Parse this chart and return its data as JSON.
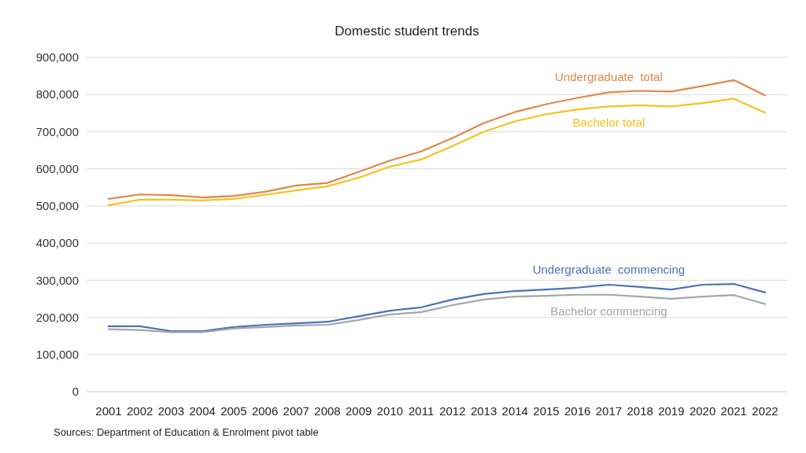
{
  "chart_data": {
    "type": "line",
    "title": "Domestic student trends",
    "categories": [
      "2001",
      "2002",
      "2003",
      "2004",
      "2005",
      "2006",
      "2007",
      "2008",
      "2009",
      "2010",
      "2011",
      "2012",
      "2013",
      "2014",
      "2015",
      "2016",
      "2017",
      "2018",
      "2019",
      "2020",
      "2021",
      "2022"
    ],
    "series": [
      {
        "name": "Undergraduate  total",
        "color": "#e0884a",
        "values": [
          519000,
          531000,
          529000,
          523000,
          527000,
          538000,
          555000,
          562000,
          592000,
          622000,
          647000,
          683000,
          723000,
          753000,
          774000,
          791000,
          806000,
          810000,
          808000,
          823000,
          839000,
          798000
        ]
      },
      {
        "name": "Bachelor total",
        "color": "#f6c21c",
        "values": [
          502000,
          517000,
          517000,
          515000,
          519000,
          530000,
          542000,
          553000,
          576000,
          606000,
          625000,
          661000,
          700000,
          728000,
          747000,
          760000,
          768000,
          771000,
          768000,
          777000,
          789000,
          751000
        ]
      },
      {
        "name": "Undergraduate  commencing",
        "color": "#4a72b8",
        "values": [
          176000,
          176000,
          163000,
          163000,
          174000,
          180000,
          184000,
          188000,
          203000,
          218000,
          227000,
          248000,
          263000,
          271000,
          275000,
          280000,
          288000,
          282000,
          275000,
          288000,
          290000,
          267000
        ]
      },
      {
        "name": "Bachelor commencing",
        "color": "#a5a5a5",
        "values": [
          168000,
          166000,
          160000,
          160000,
          170000,
          174000,
          178000,
          180000,
          193000,
          208000,
          214000,
          233000,
          248000,
          256000,
          258000,
          261000,
          261000,
          256000,
          250000,
          256000,
          260000,
          236000
        ]
      }
    ],
    "ylim": [
      0,
      900000
    ],
    "yticks": [
      {
        "value": 0,
        "label": "0"
      },
      {
        "value": 100000,
        "label": "100,000"
      },
      {
        "value": 200000,
        "label": "200,000"
      },
      {
        "value": 300000,
        "label": "300,000"
      },
      {
        "value": 400000,
        "label": "400,000"
      },
      {
        "value": 500000,
        "label": "500,000"
      },
      {
        "value": 600000,
        "label": "600,000"
      },
      {
        "value": 700000,
        "label": "700,000"
      },
      {
        "value": 800000,
        "label": "800,000"
      },
      {
        "value": 900000,
        "label": "900,000"
      }
    ],
    "grid": "y",
    "marker": "none",
    "line_style": "solid",
    "annotations": [
      "Sources: Department of Education & Enrolment pivot table"
    ]
  }
}
